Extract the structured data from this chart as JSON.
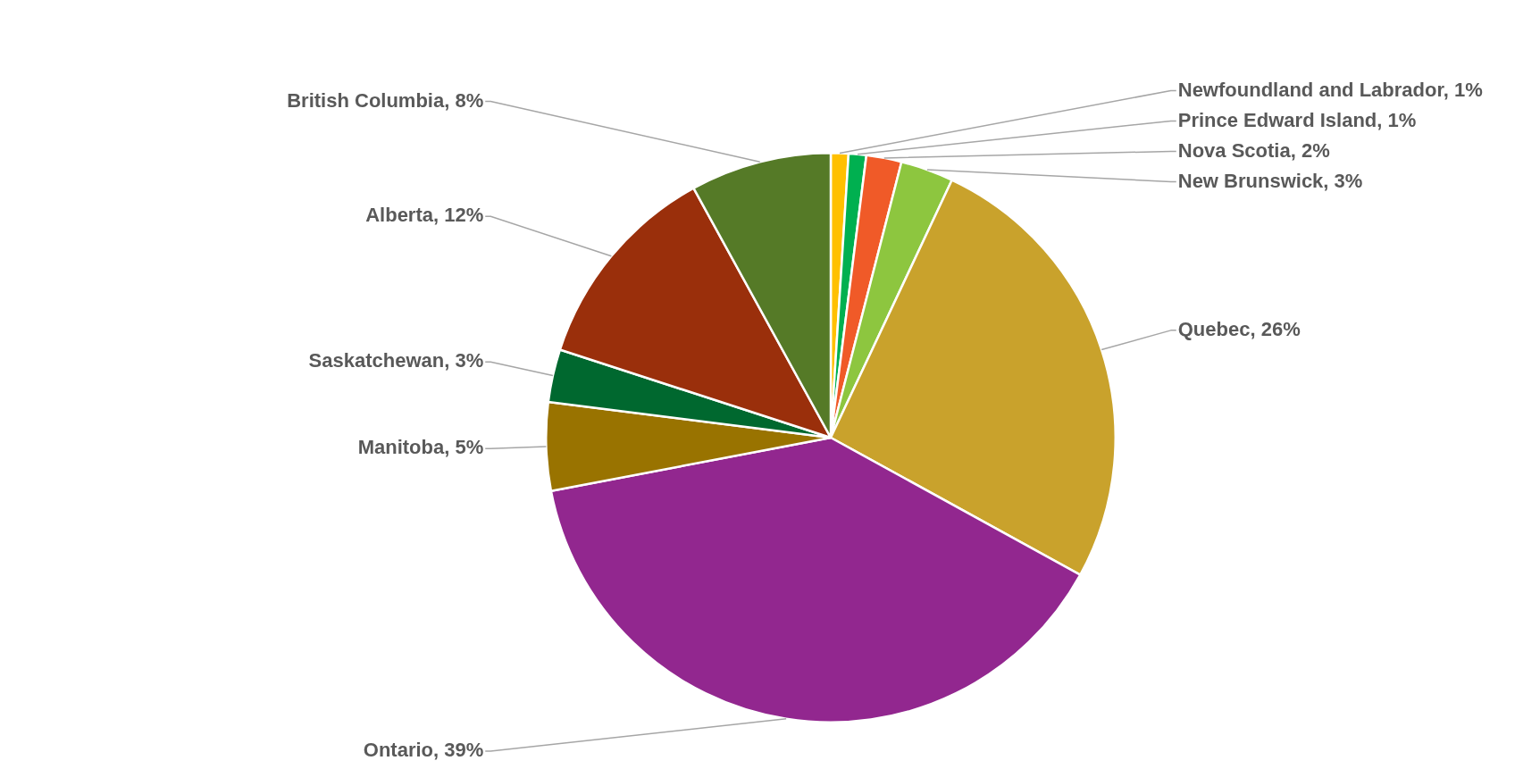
{
  "chart_data": {
    "type": "pie",
    "categories": [
      "Newfoundland and Labrador",
      "Prince Edward Island",
      "Nova Scotia",
      "New Brunswick",
      "Quebec",
      "Ontario",
      "Manitoba",
      "Saskatchewan",
      "Alberta",
      "British Columbia"
    ],
    "values": [
      1,
      1,
      2,
      3,
      26,
      39,
      5,
      3,
      12,
      8
    ],
    "value_labels": [
      "1%",
      "1%",
      "2%",
      "3%",
      "26%",
      "39%",
      "5%",
      "3%",
      "12%",
      "8%"
    ],
    "colors": [
      "#ffc000",
      "#00b050",
      "#f05a28",
      "#8dc63f",
      "#c9a22c",
      "#92278f",
      "#997300",
      "#00682f",
      "#9a2f0b",
      "#557a27"
    ],
    "legend": false
  }
}
